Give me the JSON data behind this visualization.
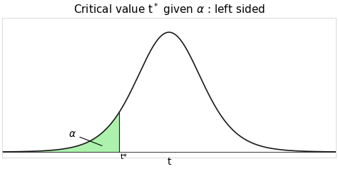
{
  "title": "Critical value t$^*$ given $\\alpha$ : left sided",
  "xlabel": "t",
  "bg_color": "#ffffff",
  "curve_color": "#1a1a1a",
  "fill_color": "#90ee90",
  "fill_alpha": 0.75,
  "t_star": -1.5,
  "df": 8,
  "x_min": -5.0,
  "x_max": 5.0,
  "alpha_label": "$\\alpha$",
  "t_star_label": "t*",
  "title_fontsize": 11,
  "curve_lw": 1.2
}
